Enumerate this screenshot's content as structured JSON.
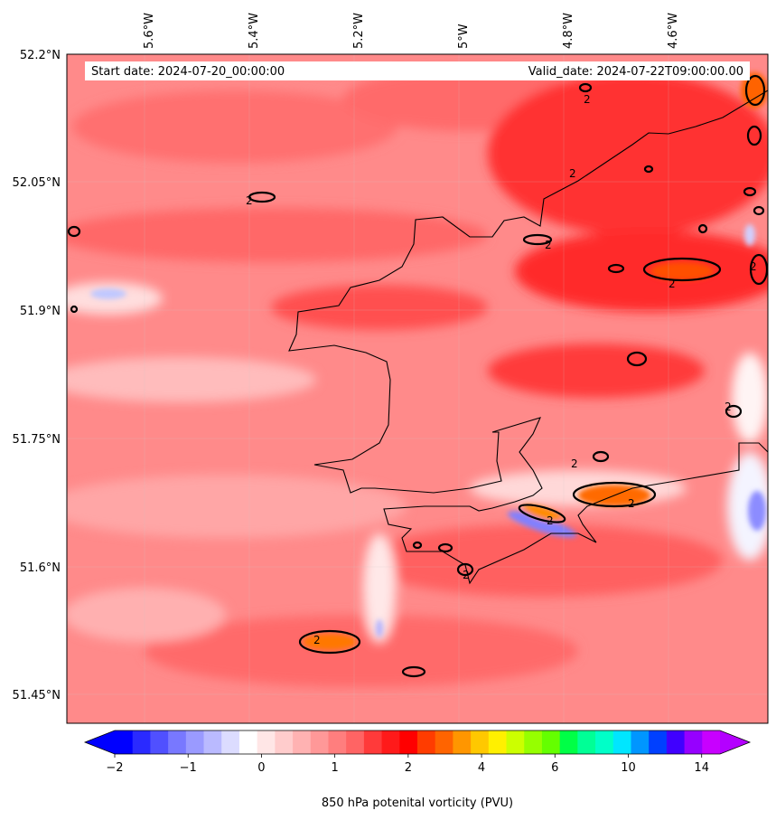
{
  "map": {
    "start_label": "Start date: 2024-07-20_00:00:00",
    "valid_label": "Valid_date: 2024-07-22T09:00:00.00",
    "lon_ticks": [
      "5.6°W",
      "5.4°W",
      "5.2°W",
      "5°W",
      "4.8°W",
      "4.6°W"
    ],
    "lat_ticks": [
      "52.2°N",
      "52.05°N",
      "51.9°N",
      "51.75°N",
      "51.6°N",
      "51.45°N"
    ],
    "contour_level": "2",
    "field_name": "850 hPa potential vorticity"
  },
  "colorbar": {
    "label": "850 hPa potenital vorticity (PVU)",
    "tick_labels": [
      "−2",
      "−1",
      "0",
      "1",
      "2",
      "4",
      "6",
      "10",
      "14"
    ],
    "colors": [
      "#0000ff",
      "#2a2aff",
      "#5050ff",
      "#7878ff",
      "#9a9aff",
      "#babaff",
      "#dcdcff",
      "#ffffff",
      "#ffe6e6",
      "#ffcccc",
      "#ffb2b2",
      "#ff9898",
      "#ff7e7e",
      "#ff6464",
      "#ff3a3a",
      "#ff1a1a",
      "#ff0000",
      "#ff3c00",
      "#ff6400",
      "#ff9600",
      "#ffc800",
      "#fff000",
      "#ccff00",
      "#96ff00",
      "#64ff00",
      "#00ff46",
      "#00ff96",
      "#00ffc8",
      "#00e6ff",
      "#0096ff",
      "#0040ff",
      "#4000ff",
      "#9600ff",
      "#c800ff"
    ],
    "extend_low_color": "#0000ff",
    "extend_high_color": "#b400ff"
  }
}
